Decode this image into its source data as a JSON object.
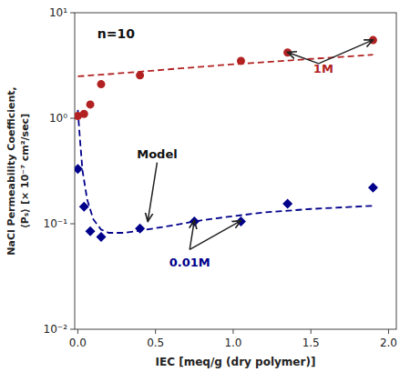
{
  "chart_data": {
    "type": "line",
    "xlabel": "IEC [meq/g (dry polymer)]",
    "ylabel": "NaCl Permeability Coefficient,\n⟨Pₛ⟩ [× 10⁻⁷ cm²/sec]",
    "log": "y",
    "grid": false,
    "xlim": [
      -0.02,
      2.05
    ],
    "ylim": [
      0.01,
      10
    ],
    "xticks": [
      {
        "value": 0,
        "label": "0.0"
      },
      0.5,
      {
        "value": 1,
        "label": "1.0"
      },
      1.5,
      {
        "value": 2,
        "label": "2.0"
      }
    ],
    "yticks": [
      {
        "value": 0.01,
        "label": "10⁻²"
      },
      {
        "value": 0.1,
        "label": "10⁻¹"
      },
      {
        "value": 1,
        "label": "10⁰"
      },
      {
        "value": 10,
        "label": "10¹"
      }
    ],
    "series": [
      {
        "type": "line",
        "line_style": "dashed",
        "color": "#B22222",
        "x": [
          0.0,
          0.05,
          0.1,
          0.2,
          0.4,
          0.6,
          0.8,
          1.0,
          1.2,
          1.5,
          1.9
        ],
        "values": [
          2.5,
          2.52,
          2.56,
          2.62,
          2.76,
          2.92,
          3.08,
          3.25,
          3.4,
          3.65,
          4.0
        ]
      },
      {
        "type": "line",
        "line_style": "dashed",
        "color": "#00008B",
        "x": [
          0.0,
          0.015,
          0.03,
          0.06,
          0.1,
          0.15,
          0.2,
          0.3,
          0.4,
          0.6,
          0.8,
          1.0,
          1.2,
          1.5,
          1.9
        ],
        "values": [
          1.2,
          0.6,
          0.32,
          0.17,
          0.11,
          0.088,
          0.082,
          0.082,
          0.086,
          0.096,
          0.108,
          0.118,
          0.128,
          0.138,
          0.148
        ]
      },
      {
        "type": "scatter",
        "marker": "circle",
        "color": "#B22222",
        "x": [
          0.0,
          0.04,
          0.08,
          0.15,
          0.4,
          1.05,
          1.35,
          1.9
        ],
        "values": [
          1.05,
          1.1,
          1.35,
          2.1,
          2.55,
          3.5,
          4.2,
          5.5
        ]
      },
      {
        "type": "scatter",
        "marker": "diamond",
        "color": "#00008B",
        "x": [
          0.0,
          0.04,
          0.08,
          0.15,
          0.4,
          0.75,
          1.05,
          1.35,
          1.9
        ],
        "values": [
          0.33,
          0.145,
          0.085,
          0.075,
          0.09,
          0.105,
          0.105,
          0.155,
          0.22
        ]
      }
    ],
    "annotations": [
      {
        "text": "n=10"
      },
      {
        "text": "Model",
        "x": 0.38,
        "y": 0.45,
        "arrows": [
          {
            "x": 0.45,
            "y": 0.105
          }
        ]
      },
      {
        "text": "1M",
        "x": 1.58,
        "y": 2.9,
        "color": "#B22222",
        "arrow_base": {
          "x": 1.55,
          "y": 3.3
        },
        "arrows": [
          {
            "x": 1.35,
            "y": 4.22
          },
          {
            "x": 1.9,
            "y": 5.52
          }
        ]
      },
      {
        "text": "0.01M",
        "x": 0.72,
        "y": 0.042,
        "color": "#00008B",
        "arrow_base": {
          "x": 0.72,
          "y": 0.057
        },
        "arrows": [
          {
            "x": 0.75,
            "y": 0.108
          },
          {
            "x": 1.05,
            "y": 0.107
          }
        ]
      }
    ]
  }
}
